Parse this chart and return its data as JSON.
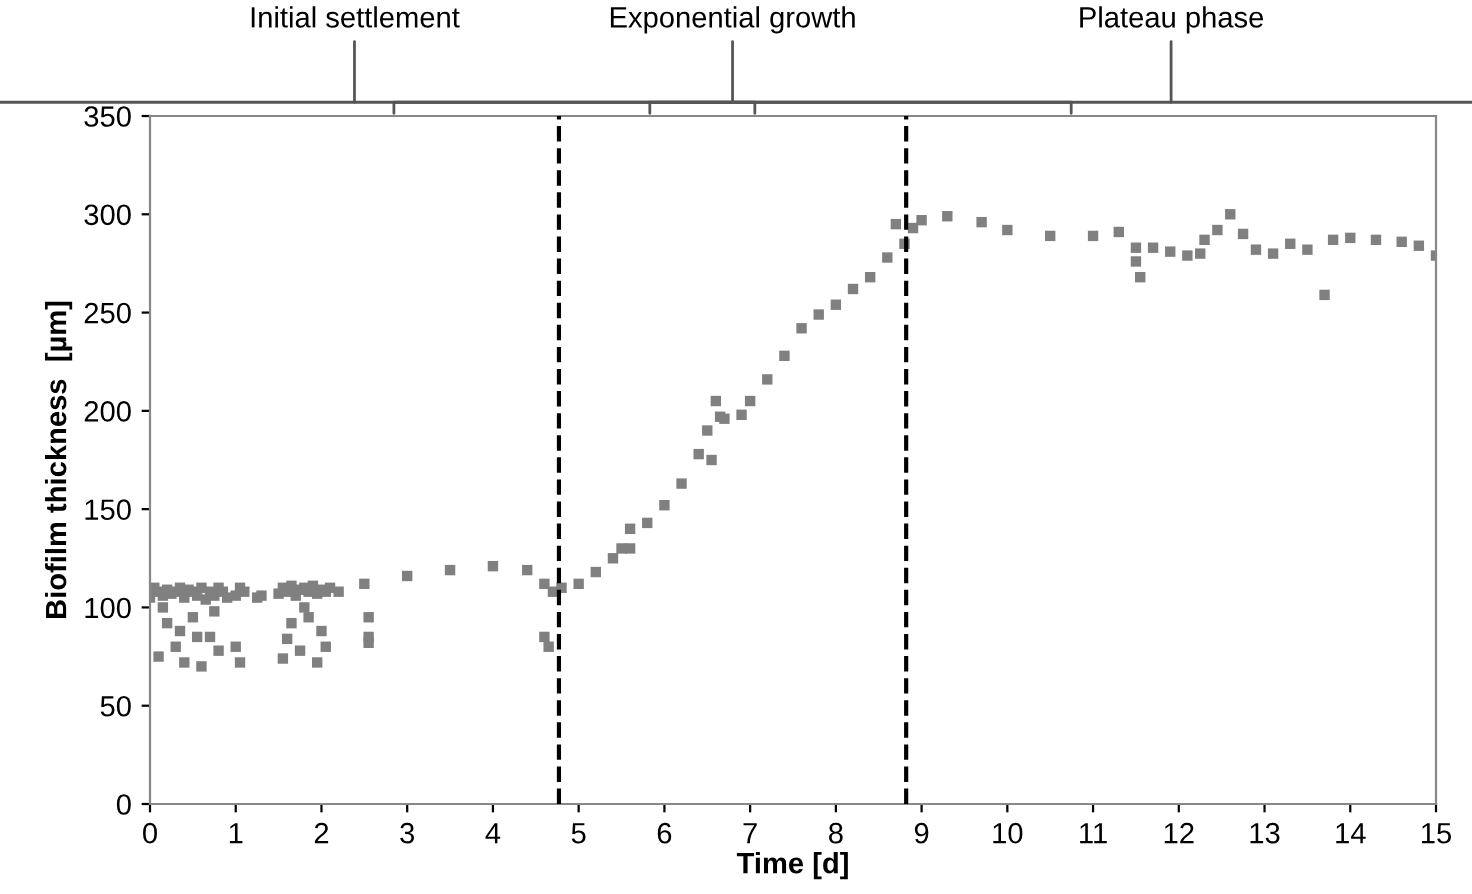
{
  "chart_data": {
    "type": "scatter",
    "xlabel": "Time [d]",
    "ylabel": "Biofilm thickness  [µm]",
    "xlim": [
      0,
      15
    ],
    "ylim": [
      0,
      350
    ],
    "xticks": [
      0,
      1,
      2,
      3,
      4,
      5,
      6,
      7,
      8,
      9,
      10,
      11,
      12,
      13,
      14,
      15
    ],
    "yticks": [
      0,
      50,
      100,
      150,
      200,
      250,
      300,
      350
    ],
    "grid": false,
    "marker": "square",
    "ref_lines": [
      {
        "axis": "x",
        "value": 4.77,
        "line_style": "dashed",
        "color": "#000000"
      },
      {
        "axis": "x",
        "value": 8.82,
        "line_style": "dashed",
        "color": "#000000"
      }
    ],
    "annotations": [
      "Initial settlement",
      "Exponential growth",
      "Plateau phase"
    ],
    "series": [
      {
        "color": "#808080",
        "x": [
          0,
          0.05,
          0.1,
          0.15,
          0.2,
          0.25,
          0.3,
          0.35,
          0.4,
          0.45,
          0.5,
          0.55,
          0.6,
          0.65,
          0.7,
          0.75,
          0.8,
          0.85,
          0.9,
          1.0,
          1.05,
          1.1,
          1.25,
          1.3,
          1.5,
          1.55,
          1.6,
          1.65,
          1.7,
          1.75,
          1.8,
          1.85,
          1.9,
          1.95,
          2.0,
          2.05,
          2.1,
          0.1,
          0.2,
          0.3,
          0.4,
          0.5,
          0.6,
          0.7,
          0.8,
          1.0,
          1.05,
          1.55,
          1.65,
          1.75,
          1.85,
          1.95,
          2.05,
          0.15,
          0.35,
          0.55,
          0.75,
          1.6,
          1.8,
          2.0,
          2.2,
          2.5,
          2.55,
          2.55,
          2.55,
          3.0,
          3.5,
          4.0,
          4.4,
          4.6,
          4.6,
          4.65,
          4.7,
          4.8,
          5.0,
          5.2,
          5.4,
          5.5,
          5.6,
          5.6,
          5.8,
          6.0,
          6.2,
          6.4,
          6.5,
          6.55,
          6.6,
          6.65,
          6.7,
          6.9,
          7.0,
          7.2,
          7.4,
          7.6,
          7.8,
          8.0,
          8.2,
          8.4,
          8.6,
          8.7,
          8.8,
          8.9,
          9.0,
          9.3,
          9.7,
          10.0,
          10.5,
          11.0,
          11.3,
          11.5,
          11.5,
          11.55,
          11.7,
          11.9,
          12.1,
          12.25,
          12.3,
          12.45,
          12.6,
          12.75,
          12.9,
          13.1,
          13.3,
          13.5,
          13.7,
          13.8,
          14.0,
          14.3,
          14.6,
          14.8,
          15.0
        ],
        "values": [
          105,
          110,
          108,
          106,
          109,
          107,
          108,
          110,
          105,
          109,
          108,
          106,
          110,
          104,
          108,
          106,
          110,
          108,
          105,
          106,
          110,
          108,
          105,
          106,
          107,
          110,
          108,
          111,
          106,
          109,
          110,
          108,
          111,
          107,
          109,
          108,
          110,
          75,
          92,
          80,
          72,
          95,
          70,
          85,
          78,
          80,
          72,
          74,
          92,
          78,
          95,
          72,
          80,
          100,
          88,
          85,
          98,
          84,
          100,
          88,
          108,
          112,
          95,
          85,
          82,
          116,
          119,
          121,
          119,
          112,
          85,
          80,
          108,
          110,
          112,
          118,
          125,
          130,
          140,
          130,
          143,
          152,
          163,
          178,
          190,
          175,
          205,
          197,
          196,
          198,
          205,
          216,
          228,
          242,
          249,
          254,
          262,
          268,
          278,
          295,
          285,
          293,
          297,
          299,
          296,
          292,
          289,
          289,
          291,
          283,
          276,
          268,
          283,
          281,
          279,
          280,
          287,
          292,
          300,
          290,
          282,
          280,
          285,
          282,
          259,
          287,
          288,
          287,
          286,
          284,
          279
        ]
      }
    ]
  }
}
